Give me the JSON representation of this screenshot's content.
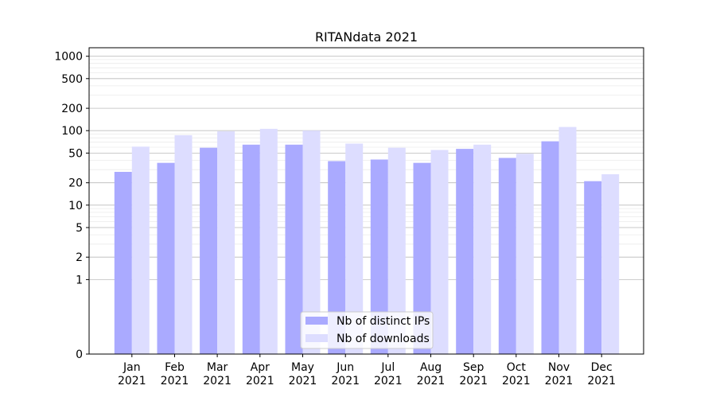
{
  "chart_data": {
    "type": "bar",
    "title": "RITANdata 2021",
    "xlabel": "",
    "ylabel": "",
    "yscale": "symlog",
    "ylim": [
      0,
      1300
    ],
    "y_ticks": [
      "0",
      "1",
      "2",
      "5",
      "10",
      "20",
      "50",
      "100",
      "200",
      "500",
      "1000"
    ],
    "categories": [
      [
        "Jan",
        "2021"
      ],
      [
        "Feb",
        "2021"
      ],
      [
        "Mar",
        "2021"
      ],
      [
        "Apr",
        "2021"
      ],
      [
        "May",
        "2021"
      ],
      [
        "Jun",
        "2021"
      ],
      [
        "Jul",
        "2021"
      ],
      [
        "Aug",
        "2021"
      ],
      [
        "Sep",
        "2021"
      ],
      [
        "Oct",
        "2021"
      ],
      [
        "Nov",
        "2021"
      ],
      [
        "Dec",
        "2021"
      ]
    ],
    "series": [
      {
        "name": "Nb of distinct IPs",
        "color": "#aaaaff",
        "values": [
          28,
          37,
          59,
          65,
          65,
          39,
          41,
          37,
          57,
          43,
          72,
          21
        ]
      },
      {
        "name": "Nb of downloads",
        "color": "#ddddff",
        "values": [
          61,
          87,
          98,
          106,
          100,
          67,
          59,
          55,
          65,
          49,
          112,
          26
        ]
      }
    ],
    "legend": "lower-center",
    "grid": true
  }
}
